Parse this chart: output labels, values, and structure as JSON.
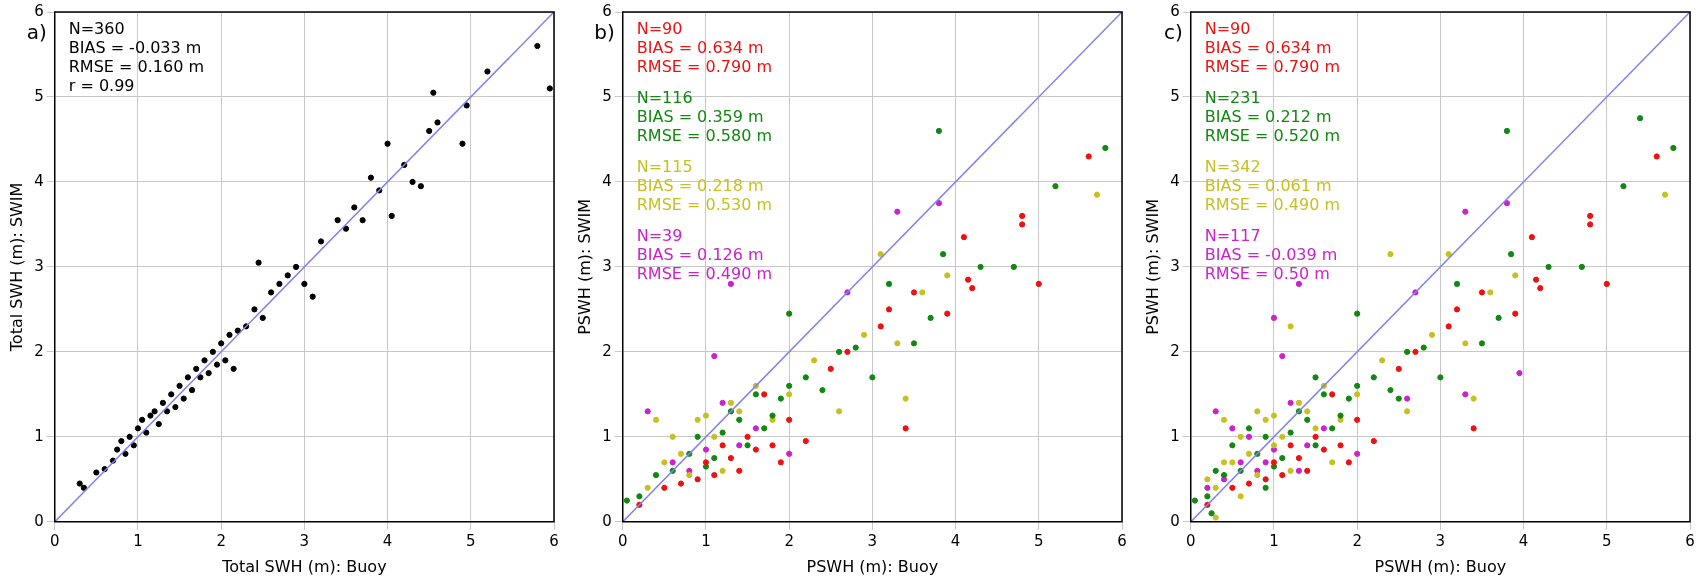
{
  "chart_data": [
    {
      "type": "scatter",
      "title": "a)",
      "xlabel": "Total SWH (m): Buoy",
      "ylabel": "Total SWH (m): SWIM",
      "xlim": [
        0,
        6
      ],
      "ylim": [
        0,
        6
      ],
      "xticks": [
        0,
        1,
        2,
        3,
        4,
        5,
        6
      ],
      "yticks": [
        0,
        1,
        2,
        3,
        4,
        5,
        6
      ],
      "grid": true,
      "marker": "circle",
      "annotations": [
        "N=360\nBIAS = -0.033 m\nRMSE = 0.160 m\nr = 0.99"
      ],
      "series": [
        {
          "color": "#000000",
          "x": [
            0.3,
            0.35,
            0.5,
            0.6,
            0.7,
            0.75,
            0.8,
            0.85,
            0.9,
            0.95,
            1.0,
            1.05,
            1.1,
            1.15,
            1.2,
            1.25,
            1.3,
            1.35,
            1.4,
            1.45,
            1.5,
            1.55,
            1.6,
            1.65,
            1.7,
            1.75,
            1.8,
            1.85,
            1.9,
            1.95,
            2.0,
            2.05,
            2.1,
            2.15,
            2.2,
            2.3,
            2.4,
            2.45,
            2.5,
            2.6,
            2.7,
            2.8,
            2.9,
            3.0,
            3.1,
            3.2,
            3.4,
            3.5,
            3.6,
            3.7,
            3.8,
            3.9,
            4.0,
            4.05,
            4.2,
            4.3,
            4.4,
            4.5,
            4.55,
            4.6,
            4.9,
            4.95,
            5.2,
            5.8,
            5.95
          ],
          "values": [
            0.45,
            0.4,
            0.58,
            0.62,
            0.72,
            0.85,
            0.95,
            0.8,
            1.0,
            0.9,
            1.1,
            1.2,
            1.05,
            1.25,
            1.3,
            1.15,
            1.4,
            1.3,
            1.5,
            1.35,
            1.6,
            1.45,
            1.7,
            1.55,
            1.8,
            1.7,
            1.9,
            1.75,
            2.0,
            1.85,
            2.1,
            1.9,
            2.2,
            1.8,
            2.25,
            2.3,
            2.5,
            3.05,
            2.4,
            2.7,
            2.8,
            2.9,
            3.0,
            2.8,
            2.65,
            3.3,
            3.55,
            3.45,
            3.7,
            3.55,
            4.05,
            3.9,
            4.45,
            3.6,
            4.2,
            4.0,
            3.95,
            4.6,
            5.05,
            4.7,
            4.45,
            4.9,
            5.3,
            5.6,
            5.1
          ]
        },
        {
          "type": "line",
          "marker": "none",
          "color": "#8080f0",
          "x": [
            0,
            6
          ],
          "values": [
            0,
            6
          ]
        }
      ]
    },
    {
      "type": "scatter",
      "title": "b)",
      "xlabel": "PSWH (m): Buoy",
      "ylabel": "PSWH (m): SWIM",
      "xlim": [
        0,
        6
      ],
      "ylim": [
        0,
        6
      ],
      "xticks": [
        0,
        1,
        2,
        3,
        4,
        5,
        6
      ],
      "yticks": [
        0,
        1,
        2,
        3,
        4,
        5,
        6
      ],
      "grid": true,
      "marker": "circle",
      "annotations": [
        "N=90\nBIAS = 0.634 m\nRMSE = 0.790 m",
        "N=116\nBIAS = 0.359 m\nRMSE = 0.580 m",
        "N=115\nBIAS = 0.218 m\nRMSE = 0.530 m",
        "N=39\nBIAS = 0.126 m\nRMSE = 0.490 m"
      ],
      "series": [
        {
          "color": "#ee1111",
          "x": [
            0.2,
            0.5,
            0.7,
            0.9,
            1.0,
            1.1,
            1.2,
            1.3,
            1.4,
            1.5,
            1.6,
            1.7,
            1.8,
            1.9,
            2.0,
            2.2,
            2.5,
            2.7,
            3.1,
            3.2,
            3.4,
            3.5,
            3.9,
            4.1,
            4.15,
            4.2,
            4.8,
            4.8,
            5.0,
            5.6
          ],
          "values": [
            0.2,
            0.4,
            0.45,
            0.5,
            0.7,
            0.55,
            0.9,
            0.75,
            0.6,
            1.0,
            0.85,
            1.5,
            0.9,
            0.7,
            1.2,
            0.95,
            1.8,
            2.0,
            2.3,
            2.5,
            1.1,
            2.7,
            2.45,
            3.35,
            2.85,
            2.75,
            3.6,
            3.5,
            2.8,
            4.3
          ]
        },
        {
          "color": "#118811",
          "x": [
            0.05,
            0.2,
            0.4,
            0.6,
            0.8,
            0.9,
            1.0,
            1.1,
            1.2,
            1.3,
            1.4,
            1.5,
            1.6,
            1.7,
            1.8,
            1.9,
            2.0,
            2.0,
            2.2,
            2.4,
            2.6,
            2.8,
            3.0,
            3.2,
            3.5,
            3.7,
            3.8,
            3.85,
            4.3,
            4.7,
            5.2,
            5.8
          ],
          "values": [
            0.25,
            0.3,
            0.55,
            0.6,
            0.8,
            1.0,
            0.65,
            0.75,
            1.05,
            1.3,
            1.2,
            0.9,
            1.5,
            1.1,
            1.25,
            1.45,
            1.6,
            2.45,
            1.7,
            1.55,
            2.0,
            2.05,
            1.7,
            2.8,
            2.1,
            2.4,
            4.6,
            3.15,
            3.0,
            3.0,
            3.95,
            4.4
          ]
        },
        {
          "color": "#c8c020",
          "x": [
            0.3,
            0.4,
            0.5,
            0.6,
            0.7,
            0.8,
            0.9,
            1.0,
            1.1,
            1.2,
            1.3,
            1.4,
            1.6,
            1.8,
            2.0,
            2.3,
            2.6,
            2.9,
            3.1,
            3.3,
            3.4,
            3.6,
            3.9,
            5.7
          ],
          "values": [
            0.4,
            1.2,
            0.7,
            1.0,
            0.8,
            0.55,
            1.2,
            1.25,
            1.0,
            0.6,
            1.4,
            1.3,
            1.6,
            1.2,
            1.5,
            1.9,
            1.3,
            2.2,
            3.15,
            2.1,
            1.45,
            2.7,
            2.9,
            3.85
          ]
        },
        {
          "color": "#cc22cc",
          "x": [
            0.3,
            0.6,
            0.8,
            1.0,
            1.1,
            1.2,
            1.3,
            1.4,
            1.6,
            2.0,
            2.7,
            3.3,
            3.8
          ],
          "values": [
            1.3,
            0.7,
            0.6,
            0.85,
            1.95,
            1.4,
            2.8,
            0.9,
            1.1,
            0.8,
            2.7,
            3.65,
            3.75
          ]
        },
        {
          "type": "line",
          "marker": "none",
          "color": "#8080f0",
          "x": [
            0,
            6
          ],
          "values": [
            0,
            6
          ]
        }
      ]
    },
    {
      "type": "scatter",
      "title": "c)",
      "xlabel": "PSWH (m): Buoy",
      "ylabel": "PSWH (m): SWIM",
      "xlim": [
        0,
        6
      ],
      "ylim": [
        0,
        6
      ],
      "xticks": [
        0,
        1,
        2,
        3,
        4,
        5,
        6
      ],
      "yticks": [
        0,
        1,
        2,
        3,
        4,
        5,
        6
      ],
      "grid": true,
      "marker": "circle",
      "annotations": [
        "N=90\nBIAS = 0.634 m\nRMSE = 0.790 m",
        "N=231\nBIAS = 0.212 m\nRMSE = 0.520 m",
        "N=342\nBIAS = 0.061 m\nRMSE = 0.490 m",
        "N=117\nBIAS = -0.039 m\nRMSE = 0.50 m"
      ],
      "series": [
        {
          "color": "#ee1111",
          "x": [
            0.2,
            0.5,
            0.7,
            0.9,
            1.0,
            1.1,
            1.2,
            1.3,
            1.4,
            1.5,
            1.6,
            1.7,
            1.8,
            1.9,
            2.0,
            2.2,
            2.5,
            2.7,
            3.1,
            3.2,
            3.4,
            3.5,
            3.9,
            4.1,
            4.15,
            4.2,
            4.8,
            4.8,
            5.0,
            5.6
          ],
          "values": [
            0.2,
            0.4,
            0.45,
            0.5,
            0.7,
            0.55,
            0.9,
            0.75,
            0.6,
            1.0,
            0.85,
            1.5,
            0.9,
            0.7,
            1.2,
            0.95,
            1.8,
            2.0,
            2.3,
            2.5,
            1.1,
            2.7,
            2.45,
            3.35,
            2.85,
            2.75,
            3.6,
            3.5,
            2.8,
            4.3
          ]
        },
        {
          "color": "#118811",
          "x": [
            0.05,
            0.2,
            0.4,
            0.6,
            0.8,
            0.9,
            1.0,
            1.1,
            1.2,
            1.3,
            1.4,
            1.5,
            1.6,
            1.7,
            1.8,
            1.9,
            2.0,
            2.0,
            2.2,
            2.4,
            2.6,
            2.8,
            3.0,
            3.2,
            3.5,
            3.7,
            3.8,
            3.85,
            4.3,
            4.7,
            5.2,
            5.8,
            0.3,
            0.5,
            0.7,
            0.25,
            5.4,
            0.9,
            1.5,
            2.5
          ],
          "values": [
            0.25,
            0.3,
            0.55,
            0.6,
            0.8,
            1.0,
            0.65,
            0.75,
            1.05,
            1.3,
            1.2,
            0.9,
            1.5,
            1.1,
            1.25,
            1.45,
            1.6,
            2.45,
            1.7,
            1.55,
            2.0,
            2.05,
            1.7,
            2.8,
            2.1,
            2.4,
            4.6,
            3.15,
            3.0,
            3.0,
            3.95,
            4.4,
            0.6,
            0.9,
            1.1,
            0.1,
            4.75,
            0.4,
            1.7,
            1.45
          ]
        },
        {
          "color": "#c8c020",
          "x": [
            0.3,
            0.4,
            0.5,
            0.6,
            0.7,
            0.8,
            0.9,
            1.0,
            1.1,
            1.2,
            1.3,
            1.4,
            1.6,
            1.8,
            2.0,
            2.3,
            2.6,
            2.9,
            3.1,
            3.3,
            3.4,
            3.6,
            3.9,
            5.7,
            0.2,
            0.4,
            0.6,
            0.8,
            1.0,
            1.2,
            1.5,
            2.4,
            0.3,
            1.7
          ],
          "values": [
            0.4,
            1.2,
            0.7,
            1.0,
            0.8,
            0.55,
            1.2,
            1.25,
            1.0,
            0.6,
            1.4,
            1.3,
            1.6,
            1.2,
            1.5,
            1.9,
            1.3,
            2.2,
            3.15,
            2.1,
            1.45,
            2.7,
            2.9,
            3.85,
            0.5,
            0.7,
            0.3,
            1.3,
            0.9,
            2.3,
            1.1,
            3.15,
            0.05,
            0.7
          ]
        },
        {
          "color": "#cc22cc",
          "x": [
            0.3,
            0.6,
            0.8,
            1.0,
            1.1,
            1.2,
            1.3,
            1.4,
            1.6,
            2.0,
            2.7,
            3.3,
            3.8,
            0.2,
            0.4,
            0.5,
            0.7,
            0.9,
            1.0,
            3.3,
            3.95,
            2.6,
            1.3
          ],
          "values": [
            1.3,
            0.7,
            0.6,
            0.85,
            1.95,
            1.4,
            2.8,
            0.9,
            1.1,
            0.8,
            2.7,
            3.65,
            3.75,
            0.4,
            0.5,
            1.1,
            1.0,
            0.7,
            2.4,
            1.5,
            1.75,
            1.45,
            0.6
          ]
        },
        {
          "type": "line",
          "marker": "none",
          "color": "#8080f0",
          "x": [
            0,
            6
          ],
          "values": [
            0,
            6
          ]
        }
      ]
    }
  ]
}
